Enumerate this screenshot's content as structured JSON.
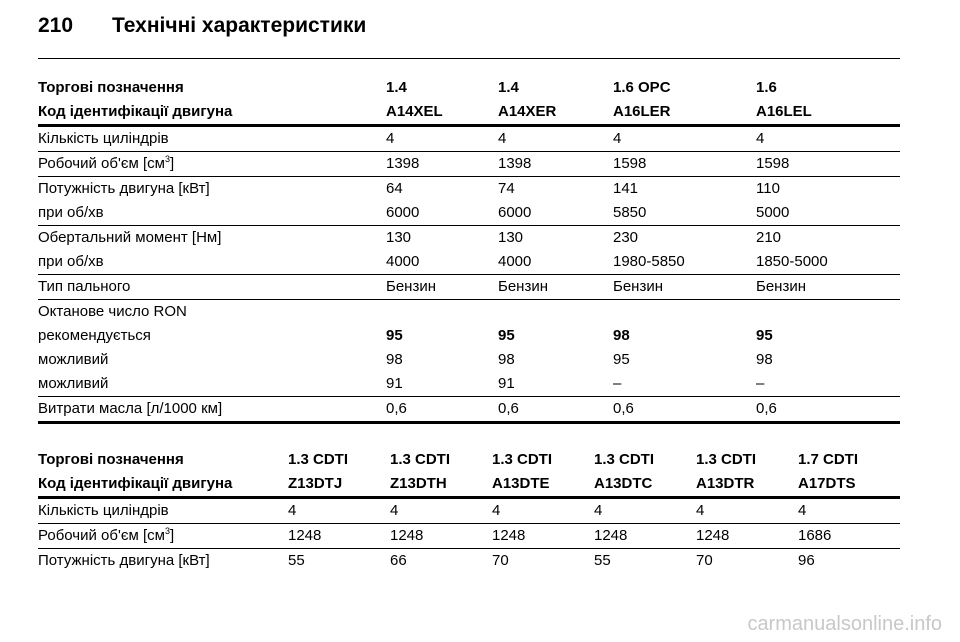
{
  "page": {
    "number": "210",
    "title": "Технічні характеристики"
  },
  "table1": {
    "header": {
      "designation_label": "Торгові позначення",
      "engine_code_label": "Код ідентифікації двигуна",
      "models": [
        "1.4",
        "1.4",
        "1.6 OPC",
        "1.6"
      ],
      "codes": [
        "A14XEL",
        "A14XER",
        "A16LER",
        "A16LEL"
      ]
    },
    "cylinders": {
      "label": "Кількість циліндрів",
      "values": [
        "4",
        "4",
        "4",
        "4"
      ]
    },
    "displacement": {
      "label": "Робочий об'єм [см",
      "unit_sup": "3",
      "label_end": "]",
      "values": [
        "1398",
        "1398",
        "1598",
        "1598"
      ]
    },
    "power": {
      "label": "Потужність двигуна [кВт]",
      "values": [
        "64",
        "74",
        "141",
        "110"
      ],
      "rpm_label": "при об/хв",
      "rpm_values": [
        "6000",
        "6000",
        "5850",
        "5000"
      ]
    },
    "torque": {
      "label": "Обертальний момент [Нм]",
      "values": [
        "130",
        "130",
        "230",
        "210"
      ],
      "rpm_label": "при об/хв",
      "rpm_values": [
        "4000",
        "4000",
        "1980-5850",
        "1850-5000"
      ]
    },
    "fuel": {
      "label": "Тип пального",
      "values": [
        "Бензин",
        "Бензин",
        "Бензин",
        "Бензин"
      ]
    },
    "octane": {
      "label": "Октанове число RON",
      "recommended_label": "рекомендується",
      "recommended": [
        "95",
        "95",
        "98",
        "95"
      ],
      "possible_label": "можливий",
      "possible1": [
        "98",
        "98",
        "95",
        "98"
      ],
      "possible_label2": "можливий",
      "possible2": [
        "91",
        "91",
        "–",
        "–"
      ]
    },
    "oil": {
      "label": "Витрати масла [л/1000 км]",
      "values": [
        "0,6",
        "0,6",
        "0,6",
        "0,6"
      ]
    }
  },
  "table2": {
    "header": {
      "designation_label": "Торгові позначення",
      "engine_code_label": "Код ідентифікації двигуна",
      "models": [
        "1.3 CDTI",
        "1.3 CDTI",
        "1.3 CDTI",
        "1.3 CDTI",
        "1.3 CDTI",
        "1.7 CDTI"
      ],
      "codes": [
        "Z13DTJ",
        "Z13DTH",
        "A13DTE",
        "A13DTC",
        "A13DTR",
        "A17DTS"
      ]
    },
    "cylinders": {
      "label": "Кількість циліндрів",
      "values": [
        "4",
        "4",
        "4",
        "4",
        "4",
        "4"
      ]
    },
    "displacement": {
      "label": "Робочий об'єм [см",
      "unit_sup": "3",
      "label_end": "]",
      "values": [
        "1248",
        "1248",
        "1248",
        "1248",
        "1248",
        "1686"
      ]
    },
    "power": {
      "label": "Потужність двигуна [кВт]",
      "values": [
        "55",
        "66",
        "70",
        "55",
        "70",
        "96"
      ]
    }
  },
  "watermark": "carmanualsonline.info"
}
